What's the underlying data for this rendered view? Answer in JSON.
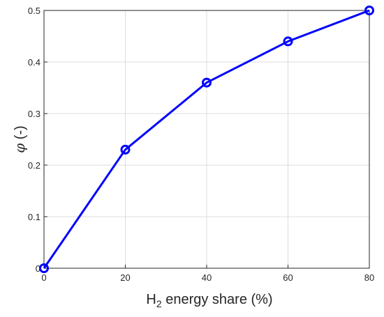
{
  "chart_data": {
    "type": "line",
    "x": [
      0,
      20,
      40,
      60,
      80
    ],
    "series": [
      {
        "values": [
          0,
          0.23,
          0.36,
          0.44,
          0.5
        ],
        "color": "#0000ff",
        "marker": "circle"
      }
    ],
    "xlabel": {
      "main": "H",
      "sub": "2",
      "rest": " energy share (%)"
    },
    "ylabel": {
      "symbol": "φ",
      "unit": " (-)"
    },
    "xlim": [
      0,
      80
    ],
    "ylim": [
      0,
      0.5
    ],
    "xticks": [
      "0",
      "20",
      "40",
      "60",
      "80"
    ],
    "yticks": [
      "0",
      "0.1",
      "0.2",
      "0.3",
      "0.4",
      "0.5"
    ],
    "grid": true
  }
}
